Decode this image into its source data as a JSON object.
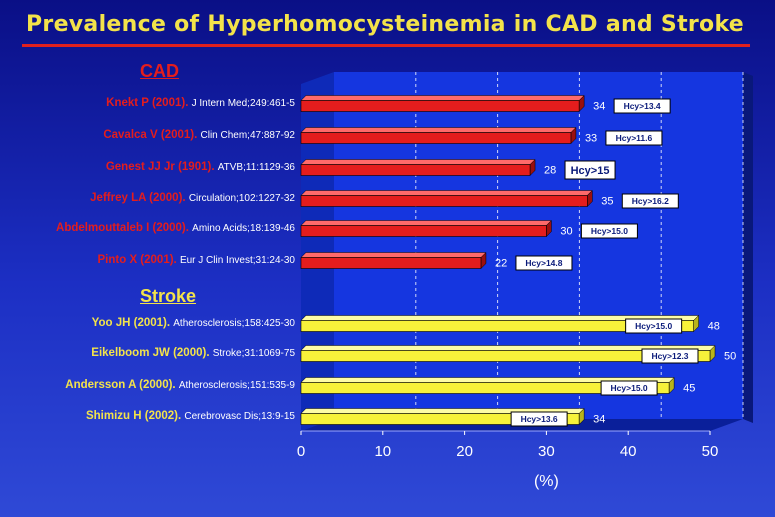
{
  "title": "Prevalence of Hyperhomocysteinemia in CAD and Stroke",
  "sections": {
    "cad": "CAD",
    "stroke": "Stroke"
  },
  "rows": [
    {
      "group": "cad",
      "author": "Knekt P (2001).",
      "ref": "J Intern Med;249:461-5"
    },
    {
      "group": "cad",
      "author": "Cavalca V (2001).",
      "ref": "Clin Chem;47:887-92"
    },
    {
      "group": "cad",
      "author": "Genest JJ Jr (1901).",
      "ref": "ATVB;11:1129-36"
    },
    {
      "group": "cad",
      "author": "Jeffrey LA (2000).",
      "ref": "Circulation;102:1227-32"
    },
    {
      "group": "cad",
      "author": "Abdelmouttaleb I (2000).",
      "ref": "Amino Acids;18:139-46"
    },
    {
      "group": "cad",
      "author": "Pinto X (2001).",
      "ref": "Eur J Clin Invest;31:24-30"
    },
    {
      "group": "stroke",
      "author": "Yoo JH (2001).",
      "ref": "Atherosclerosis;158:425-30"
    },
    {
      "group": "stroke",
      "author": "Eikelboom JW (2000).",
      "ref": "Stroke;31:1069-75"
    },
    {
      "group": "stroke",
      "author": "Andersson A (2000).",
      "ref": "Atherosclerosis;151:535-9"
    },
    {
      "group": "stroke",
      "author": "Shimizu H (2002).",
      "ref": "Cerebrovasc Dis;13:9-15"
    }
  ],
  "colors": {
    "cad_bar": "#e41d1d",
    "stroke_bar": "#f7f23a",
    "plot_bg": "#1536e0",
    "grid": "#ffffff"
  },
  "chart_data": {
    "type": "bar",
    "orientation": "horizontal",
    "categories": [
      "Knekt P (2001).",
      "Cavalca V (2001).",
      "Genest JJ Jr (1901).",
      "Jeffrey LA (2000).",
      "Abdelmouttaleb I (2000).",
      "Pinto X (2001).",
      "Yoo JH (2001).",
      "Eikelboom JW (2000).",
      "Andersson A (2000).",
      "Shimizu H (2002)."
    ],
    "values": [
      34,
      33,
      28,
      35,
      30,
      22,
      48,
      50,
      45,
      34
    ],
    "value_labels": [
      "34",
      "33",
      "28",
      "35",
      "30",
      "22",
      "48",
      "50",
      "45",
      "34"
    ],
    "thresholds": [
      "Hcy>13.4",
      "Hcy>11.6",
      "Hcy>15",
      "Hcy>16.2",
      "Hcy>15.0",
      "Hcy>14.8",
      "Hcy>15.0",
      "Hcy>12.3",
      "Hcy>15.0",
      "Hcy>13.6"
    ],
    "xlabel": "(%)",
    "ylabel": "",
    "xlim": [
      0,
      50
    ],
    "xticks": [
      "0",
      "10",
      "20",
      "30",
      "40",
      "50"
    ],
    "grid": true
  }
}
